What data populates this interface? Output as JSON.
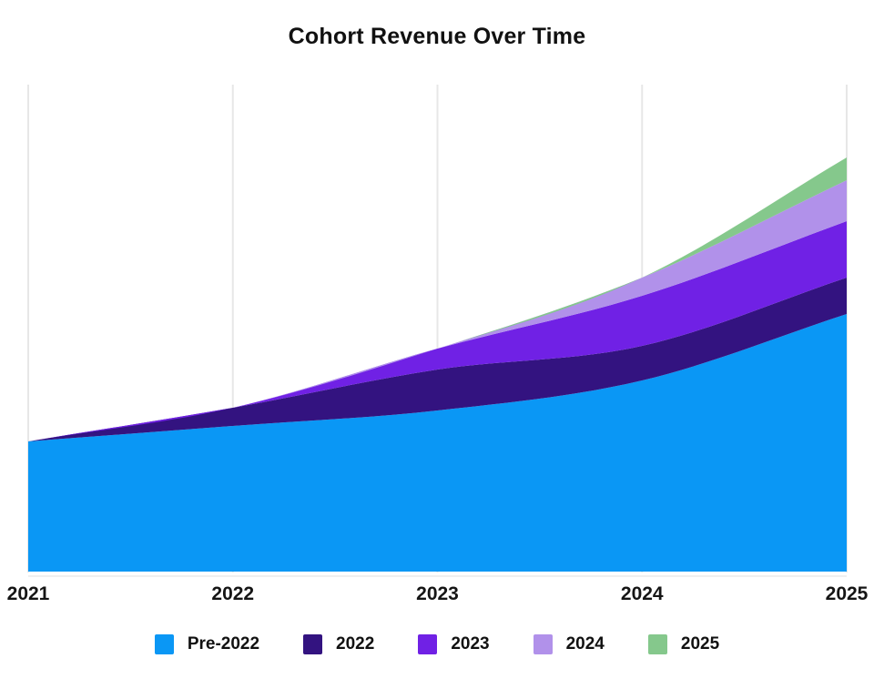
{
  "page": {
    "background_color": "#ffffff",
    "title": "Cohort Revenue Over Time"
  },
  "chart_data": {
    "type": "area",
    "stacked": true,
    "title": "Cohort Revenue Over Time",
    "xlabel": "",
    "ylabel": "",
    "x": [
      2021,
      2022,
      2023,
      2024,
      2025
    ],
    "x_tick_labels": [
      "2021",
      "2022",
      "2023",
      "2024",
      "2025"
    ],
    "series": [
      {
        "name": "Pre-2022",
        "color": "#0A97F5",
        "values": [
          14.3,
          16.0,
          17.7,
          21.0,
          28.3
        ]
      },
      {
        "name": "2022",
        "color": "#331380",
        "values": [
          0,
          2.0,
          4.5,
          3.8,
          4.0
        ]
      },
      {
        "name": "2023",
        "color": "#7021E5",
        "values": [
          0,
          0,
          2.3,
          5.5,
          6.2
        ]
      },
      {
        "name": "2024",
        "color": "#B191EA",
        "values": [
          0,
          0,
          0,
          2.0,
          4.5
        ]
      },
      {
        "name": "2025",
        "color": "#85C88C",
        "values": [
          0,
          0,
          0,
          0,
          2.5
        ]
      }
    ],
    "stacked_totals": [
      14.3,
      18.0,
      24.5,
      32.3,
      45.5
    ],
    "ylim": [
      0,
      53.6
    ],
    "y_axis_visible": false,
    "grid": "vertical-only",
    "gridline_color": "#e7e7e7",
    "baseline_color": "#efefef",
    "curve": "monotone",
    "legend_position": "bottom"
  },
  "legend": {
    "items": [
      {
        "label": "Pre-2022",
        "color": "#0A97F5"
      },
      {
        "label": "2022",
        "color": "#331380"
      },
      {
        "label": "2023",
        "color": "#7021E5"
      },
      {
        "label": "2024",
        "color": "#B191EA"
      },
      {
        "label": "2025",
        "color": "#85C88C"
      }
    ]
  }
}
